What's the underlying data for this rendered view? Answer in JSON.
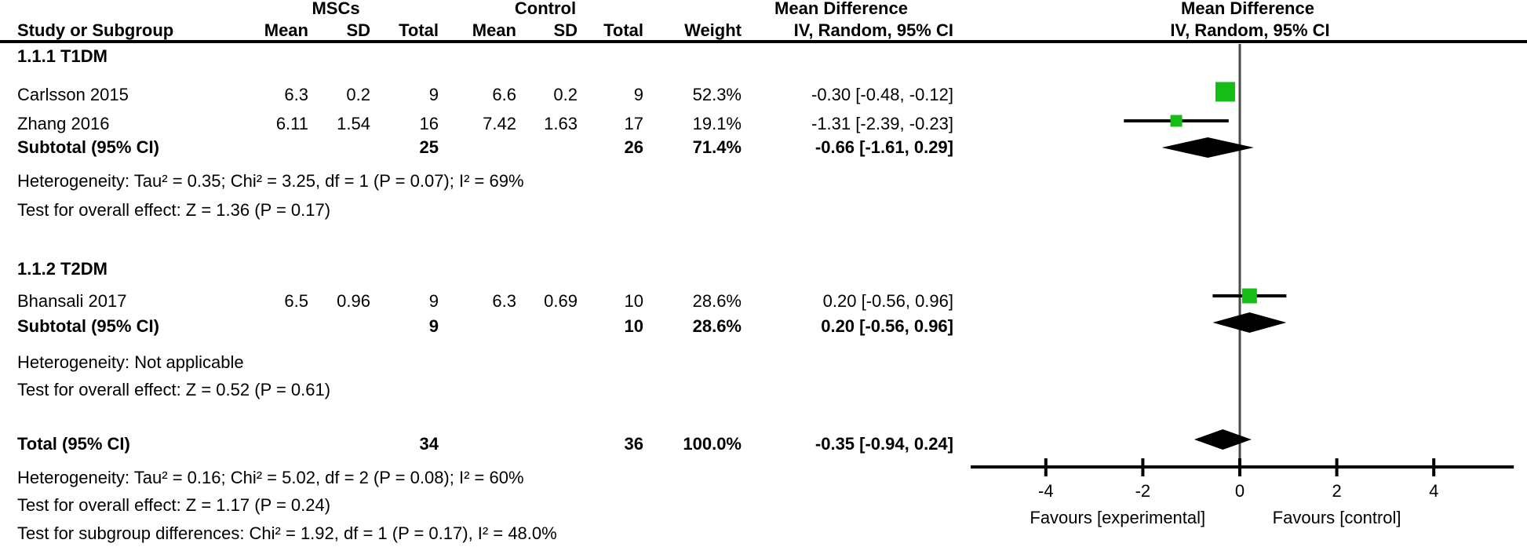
{
  "meta": {
    "background": "#ffffff",
    "text_color": "#000000",
    "marker_color": "#17bd17",
    "diamond_color": "#000000",
    "axis_color": "#000000",
    "zero_line_color": "#4a4a4a"
  },
  "header": {
    "group1": "MSCs",
    "group2": "Control",
    "col_study": "Study or Subgroup",
    "col_mean1": "Mean",
    "col_sd1": "SD",
    "col_total1": "Total",
    "col_mean2": "Mean",
    "col_sd2": "SD",
    "col_total2": "Total",
    "col_weight": "Weight",
    "md_text_title": "Mean Difference",
    "md_text_sub": "IV, Random, 95% CI",
    "md_plot_title": "Mean Difference",
    "md_plot_sub": "IV, Random, 95% CI"
  },
  "rows": [
    {
      "kind": "group",
      "study": "1.1.1 T1DM"
    },
    {
      "kind": "study",
      "study": "Carlsson 2015",
      "m1": "6.3",
      "sd1": "0.2",
      "t1": "9",
      "m2": "6.6",
      "sd2": "0.2",
      "t2": "9",
      "w": "52.3%",
      "ci": "-0.30 [-0.48, -0.12]"
    },
    {
      "kind": "study",
      "study": "Zhang 2016",
      "m1": "6.11",
      "sd1": "1.54",
      "t1": "16",
      "m2": "7.42",
      "sd2": "1.63",
      "t2": "17",
      "w": "19.1%",
      "ci": "-1.31 [-2.39, -0.23]"
    },
    {
      "kind": "subtotal",
      "study": "Subtotal (95% CI)",
      "t1": "25",
      "t2": "26",
      "w": "71.4%",
      "ci": "-0.66 [-1.61, 0.29]"
    },
    {
      "kind": "note",
      "study": "Heterogeneity: Tau² = 0.35; Chi² = 3.25, df = 1 (P = 0.07); I² = 69%"
    },
    {
      "kind": "note",
      "study": "Test for overall effect: Z = 1.36 (P = 0.17)"
    },
    {
      "kind": "group",
      "study": "1.1.2 T2DM"
    },
    {
      "kind": "study",
      "study": "Bhansali 2017",
      "m1": "6.5",
      "sd1": "0.96",
      "t1": "9",
      "m2": "6.3",
      "sd2": "0.69",
      "t2": "10",
      "w": "28.6%",
      "ci": "0.20 [-0.56, 0.96]"
    },
    {
      "kind": "subtotal",
      "study": "Subtotal (95% CI)",
      "t1": "9",
      "t2": "10",
      "w": "28.6%",
      "ci": "0.20 [-0.56, 0.96]"
    },
    {
      "kind": "note",
      "study": "Heterogeneity: Not applicable"
    },
    {
      "kind": "note",
      "study": "Test for overall effect: Z = 0.52 (P = 0.61)"
    },
    {
      "kind": "total",
      "study": "Total (95% CI)",
      "t1": "34",
      "t2": "36",
      "w": "100.0%",
      "ci": "-0.35 [-0.94, 0.24]"
    },
    {
      "kind": "note",
      "study": "Heterogeneity: Tau² = 0.16; Chi² = 5.02, df = 2 (P = 0.08); I² = 60%"
    },
    {
      "kind": "note",
      "study": "Test for overall effect: Z = 1.17 (P = 0.24)"
    },
    {
      "kind": "note",
      "study": "Test for subgroup differences: Chi² = 1.92, df = 1 (P = 0.17), I² = 48.0%"
    }
  ],
  "chart_data": {
    "type": "forest",
    "effect_measure": "Mean Difference",
    "method": "IV, Random, 95% CI",
    "x_ticks": [
      -4,
      -2,
      0,
      2,
      4
    ],
    "x_range": [
      -5.55,
      5.65
    ],
    "favours_left": "Favours [experimental]",
    "favours_right": "Favours [control]",
    "groups": [
      {
        "name": "1.1.1 T1DM",
        "studies": [
          {
            "label": "Carlsson 2015",
            "md": -0.3,
            "ci": [
              -0.48,
              -0.12
            ],
            "weight_pct": 52.3
          },
          {
            "label": "Zhang 2016",
            "md": -1.31,
            "ci": [
              -2.39,
              -0.23
            ],
            "weight_pct": 19.1
          }
        ],
        "subtotal": {
          "label": "Subtotal (95% CI)",
          "md": -0.66,
          "ci": [
            -1.61,
            0.29
          ],
          "weight_pct": 71.4,
          "heterogeneity": "Tau² = 0.35; Chi² = 3.25, df = 1 (P = 0.07); I² = 69%",
          "overall_effect": "Z = 1.36 (P = 0.17)"
        }
      },
      {
        "name": "1.1.2 T2DM",
        "studies": [
          {
            "label": "Bhansali 2017",
            "md": 0.2,
            "ci": [
              -0.56,
              0.96
            ],
            "weight_pct": 28.6
          }
        ],
        "subtotal": {
          "label": "Subtotal (95% CI)",
          "md": 0.2,
          "ci": [
            -0.56,
            0.96
          ],
          "weight_pct": 28.6,
          "heterogeneity": "Not applicable",
          "overall_effect": "Z = 0.52 (P = 0.61)"
        }
      }
    ],
    "total": {
      "label": "Total (95% CI)",
      "md": -0.35,
      "ci": [
        -0.94,
        0.24
      ],
      "weight_pct": 100.0,
      "heterogeneity": "Tau² = 0.16; Chi² = 5.02, df = 2 (P = 0.08); I² = 60%",
      "overall_effect": "Z = 1.17 (P = 0.24)",
      "subgroup_differences": "Chi² = 1.92, df = 1 (P = 0.17), I² = 48.0%"
    }
  }
}
